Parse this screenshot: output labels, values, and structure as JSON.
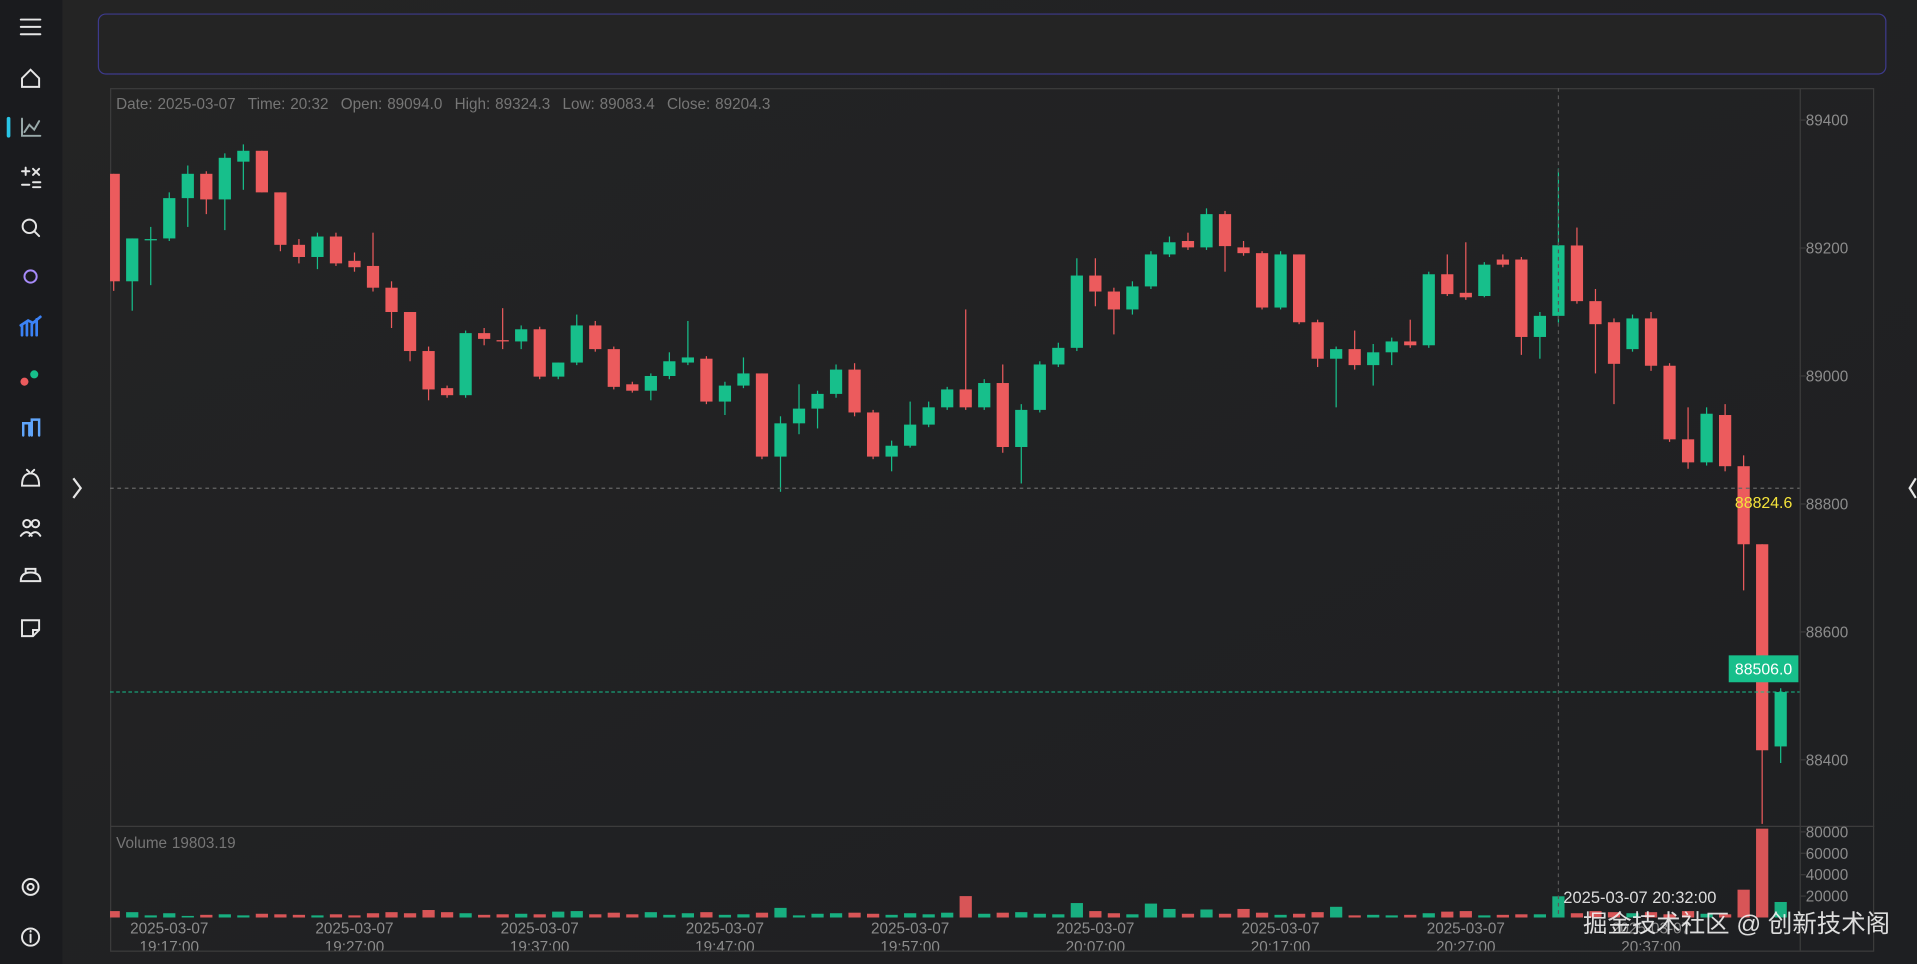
{
  "chart_data": {
    "type": "candlestick",
    "info": [
      {
        "label": "Date:",
        "value": "2025-03-07"
      },
      {
        "label": "Time:",
        "value": "20:32"
      },
      {
        "label": "Open:",
        "value": "89094.0"
      },
      {
        "label": "High:",
        "value": "89324.3"
      },
      {
        "label": "Low:",
        "value": "89083.4"
      },
      {
        "label": "Close:",
        "value": "89204.3"
      }
    ],
    "x": [
      "2025-03-07 19:14:00",
      "2025-03-07 19:15:00",
      "2025-03-07 19:16:00",
      "2025-03-07 19:17:00",
      "2025-03-07 19:18:00",
      "2025-03-07 19:19:00",
      "2025-03-07 19:20:00",
      "2025-03-07 19:21:00",
      "2025-03-07 19:22:00",
      "2025-03-07 19:23:00",
      "2025-03-07 19:24:00",
      "2025-03-07 19:25:00",
      "2025-03-07 19:26:00",
      "2025-03-07 19:27:00",
      "2025-03-07 19:28:00",
      "2025-03-07 19:29:00",
      "2025-03-07 19:30:00",
      "2025-03-07 19:31:00",
      "2025-03-07 19:32:00",
      "2025-03-07 19:33:00",
      "2025-03-07 19:34:00",
      "2025-03-07 19:35:00",
      "2025-03-07 19:36:00",
      "2025-03-07 19:37:00",
      "2025-03-07 19:38:00",
      "2025-03-07 19:39:00",
      "2025-03-07 19:40:00",
      "2025-03-07 19:41:00",
      "2025-03-07 19:42:00",
      "2025-03-07 19:43:00",
      "2025-03-07 19:44:00",
      "2025-03-07 19:45:00",
      "2025-03-07 19:46:00",
      "2025-03-07 19:47:00",
      "2025-03-07 19:48:00",
      "2025-03-07 19:49:00",
      "2025-03-07 19:50:00",
      "2025-03-07 19:51:00",
      "2025-03-07 19:52:00",
      "2025-03-07 19:53:00",
      "2025-03-07 19:54:00",
      "2025-03-07 19:55:00",
      "2025-03-07 19:56:00",
      "2025-03-07 19:57:00",
      "2025-03-07 19:58:00",
      "2025-03-07 19:59:00",
      "2025-03-07 20:00:00",
      "2025-03-07 20:01:00",
      "2025-03-07 20:02:00",
      "2025-03-07 20:03:00",
      "2025-03-07 20:04:00",
      "2025-03-07 20:05:00",
      "2025-03-07 20:06:00",
      "2025-03-07 20:07:00",
      "2025-03-07 20:08:00",
      "2025-03-07 20:09:00",
      "2025-03-07 20:10:00",
      "2025-03-07 20:11:00",
      "2025-03-07 20:12:00",
      "2025-03-07 20:13:00",
      "2025-03-07 20:14:00",
      "2025-03-07 20:15:00",
      "2025-03-07 20:16:00",
      "2025-03-07 20:17:00",
      "2025-03-07 20:18:00",
      "2025-03-07 20:19:00",
      "2025-03-07 20:20:00",
      "2025-03-07 20:21:00",
      "2025-03-07 20:22:00",
      "2025-03-07 20:23:00",
      "2025-03-07 20:24:00",
      "2025-03-07 20:25:00",
      "2025-03-07 20:26:00",
      "2025-03-07 20:27:00",
      "2025-03-07 20:28:00",
      "2025-03-07 20:29:00",
      "2025-03-07 20:30:00",
      "2025-03-07 20:31:00",
      "2025-03-07 20:32:00",
      "2025-03-07 20:33:00",
      "2025-03-07 20:34:00",
      "2025-03-07 20:35:00",
      "2025-03-07 20:36:00",
      "2025-03-07 20:37:00",
      "2025-03-07 20:38:00",
      "2025-03-07 20:39:00",
      "2025-03-07 20:40:00",
      "2025-03-07 20:41:00",
      "2025-03-07 20:42:00",
      "2025-03-07 20:43:00",
      "2025-03-07 20:44:00"
    ],
    "open": [
      89316,
      89148,
      89212,
      89215,
      89278,
      89316,
      89276,
      89335,
      89352,
      89287,
      89205,
      89186,
      89218,
      89180,
      89172,
      89138,
      89100,
      89039,
      88981,
      88970,
      89067,
      89056,
      89054,
      89073,
      88999,
      89021,
      89079,
      89042,
      88987,
      88977,
      89000,
      89021,
      89027,
      88960,
      88985,
      89004,
      88874,
      88926,
      88949,
      88972,
      89010,
      88943,
      88874,
      88891,
      88924,
      88951,
      88979,
      88951,
      88989,
      88889,
      88947,
      89018,
      89044,
      89157,
      89132,
      89104,
      89140,
      89190,
      89211,
      89201,
      89253,
      89201,
      89192,
      89107,
      89190,
      89084,
      89027,
      89042,
      89017,
      89037,
      89054,
      89048,
      89159,
      89130,
      89125,
      89182,
      89182,
      89061,
      89094,
      89204,
      89117,
      89084,
      89042,
      89090,
      89016,
      88901,
      88865,
      88939,
      88859,
      88737,
      88421
    ],
    "high": [
      89316,
      89215,
      89233,
      89287,
      89329,
      89320,
      89348,
      89362,
      89352,
      89287,
      89214,
      89224,
      89224,
      89193,
      89224,
      89148,
      89100,
      89046,
      88985,
      89071,
      89075,
      89106,
      89079,
      89077,
      89021,
      89096,
      89086,
      89046,
      88991,
      89004,
      89037,
      89086,
      89031,
      88991,
      89029,
      89004,
      88937,
      88987,
      88977,
      89018,
      89020,
      88947,
      88899,
      88960,
      88960,
      88983,
      89104,
      88995,
      89018,
      88956,
      89023,
      89052,
      89184,
      89184,
      89138,
      89148,
      89195,
      89218,
      89224,
      89262,
      89258,
      89211,
      89195,
      89195,
      89190,
      89088,
      89046,
      89071,
      89050,
      89060,
      89088,
      89163,
      89190,
      89209,
      89178,
      89190,
      89186,
      89100,
      89324.3,
      89232,
      89136,
      89090,
      89096,
      89100,
      89020,
      88951,
      88951,
      88956,
      88876,
      88737,
      88512
    ],
    "low": [
      89133,
      89102,
      89142,
      89211,
      89233,
      89253,
      89228,
      89291,
      89287,
      89195,
      89176,
      89167,
      89172,
      89163,
      89132,
      89075,
      89023,
      88962,
      88966,
      88966,
      89048,
      89042,
      89042,
      88995,
      88995,
      89017,
      89038,
      88979,
      88974,
      88962,
      88995,
      89017,
      88956,
      88939,
      88981,
      88870,
      88819,
      88909,
      88918,
      88966,
      88937,
      88870,
      88851,
      88888,
      88920,
      88947,
      88947,
      88947,
      88880,
      88832,
      88943,
      89014,
      89039,
      89109,
      89065,
      89096,
      89136,
      89186,
      89197,
      89197,
      89163,
      89188,
      89104,
      89104,
      89081,
      89014,
      88951,
      89010,
      88985,
      89017,
      89044,
      89044,
      89125,
      89119,
      89123,
      89170,
      89033,
      89027,
      89083.4,
      89113,
      89004,
      88956,
      89038,
      89008,
      88897,
      88855,
      88860,
      88851,
      88665,
      88300,
      88395
    ],
    "close": [
      89148,
      89215,
      89214,
      89278,
      89316,
      89276,
      89341,
      89352,
      89287,
      89205,
      89186,
      89218,
      89176,
      89170,
      89138,
      89100,
      89039,
      88979,
      88970,
      89067,
      89058,
      89054,
      89073,
      88999,
      89021,
      89079,
      89042,
      88983,
      88977,
      89000,
      89023,
      89029,
      88960,
      88985,
      89004,
      88874,
      88926,
      88949,
      88972,
      89010,
      88943,
      88874,
      88891,
      88924,
      88951,
      88979,
      88951,
      88989,
      88889,
      88947,
      89018,
      89044,
      89157,
      89132,
      89104,
      89140,
      89190,
      89209,
      89201,
      89253,
      89203,
      89192,
      89107,
      89190,
      89084,
      89027,
      89042,
      89017,
      89037,
      89054,
      89048,
      89159,
      89128,
      89123,
      89174,
      89174,
      89061,
      89094,
      89204.3,
      89117,
      89081,
      89019,
      89090,
      89016,
      88901,
      88865,
      88941,
      88859,
      88737,
      88415,
      88506
    ],
    "up_color": "#17bf8b",
    "down_color": "#ec5b5d",
    "ylim": [
      88297,
      89450
    ],
    "yticks": [
      88400,
      88600,
      88800,
      89000,
      89200,
      89400
    ],
    "grid": false,
    "xticks": [
      "2025-03-07 19:17:00",
      "2025-03-07 19:27:00",
      "2025-03-07 19:37:00",
      "2025-03-07 19:47:00",
      "2025-03-07 19:57:00",
      "2025-03-07 20:07:00",
      "2025-03-07 20:17:00",
      "2025-03-07 20:27:00",
      "2025-03-07 20:37:00"
    ],
    "crosshair": {
      "x": "2025-03-07 20:32:00",
      "y": 88824.6
    },
    "last_price": {
      "value": 88506,
      "label": "88506.0"
    },
    "volume": {
      "label": "Volume",
      "current": 19803.19,
      "values": [
        6000,
        5000,
        2000,
        4000,
        1500,
        2500,
        3000,
        2000,
        3500,
        3000,
        2500,
        2000,
        3000,
        2000,
        4000,
        5000,
        4000,
        7000,
        5000,
        4000,
        2500,
        3000,
        3500,
        3000,
        5500,
        6000,
        3000,
        4500,
        3000,
        5000,
        2500,
        4000,
        5000,
        2500,
        3000,
        4500,
        9000,
        2000,
        3500,
        4000,
        4500,
        3500,
        2500,
        4000,
        3000,
        4500,
        20000,
        3500,
        4500,
        5000,
        3500,
        3000,
        13500,
        6000,
        4000,
        3000,
        13000,
        8000,
        3500,
        7500,
        3500,
        8000,
        4500,
        2500,
        3500,
        5000,
        10000,
        2000,
        2500,
        2000,
        2500,
        4000,
        5500,
        6000,
        2000,
        2500,
        3000,
        3000,
        19803.19,
        4000,
        6000,
        5000,
        4000,
        5000,
        3000,
        6000,
        3500,
        3000,
        26000,
        83000,
        14500
      ],
      "ylim": [
        0,
        85700
      ],
      "yticks": [
        20000,
        40000,
        60000,
        80000
      ]
    },
    "watermark": "掘金技术社区 @ 创新技术阁"
  }
}
